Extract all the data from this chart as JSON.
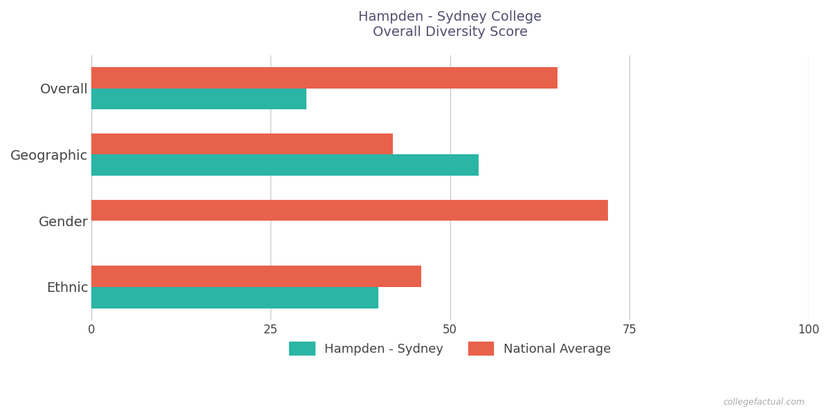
{
  "title_line1": "Hampden - Sydney College",
  "title_line2": "Overall Diversity Score",
  "categories": [
    "Overall",
    "Geographic",
    "Gender",
    "Ethnic"
  ],
  "hampden_values": [
    30,
    54,
    0,
    40
  ],
  "national_values": [
    65,
    42,
    72,
    46
  ],
  "hampden_color": "#2ab5a5",
  "national_color": "#e8614a",
  "xlim": [
    0,
    100
  ],
  "xticks": [
    0,
    25,
    50,
    75,
    100
  ],
  "legend_labels": [
    "Hampden - Sydney",
    "National Average"
  ],
  "background_color": "#ffffff",
  "grid_color": "#cccccc",
  "title_color": "#505070",
  "label_color": "#444444",
  "bar_height": 0.32,
  "watermark": "collegefactual.com"
}
